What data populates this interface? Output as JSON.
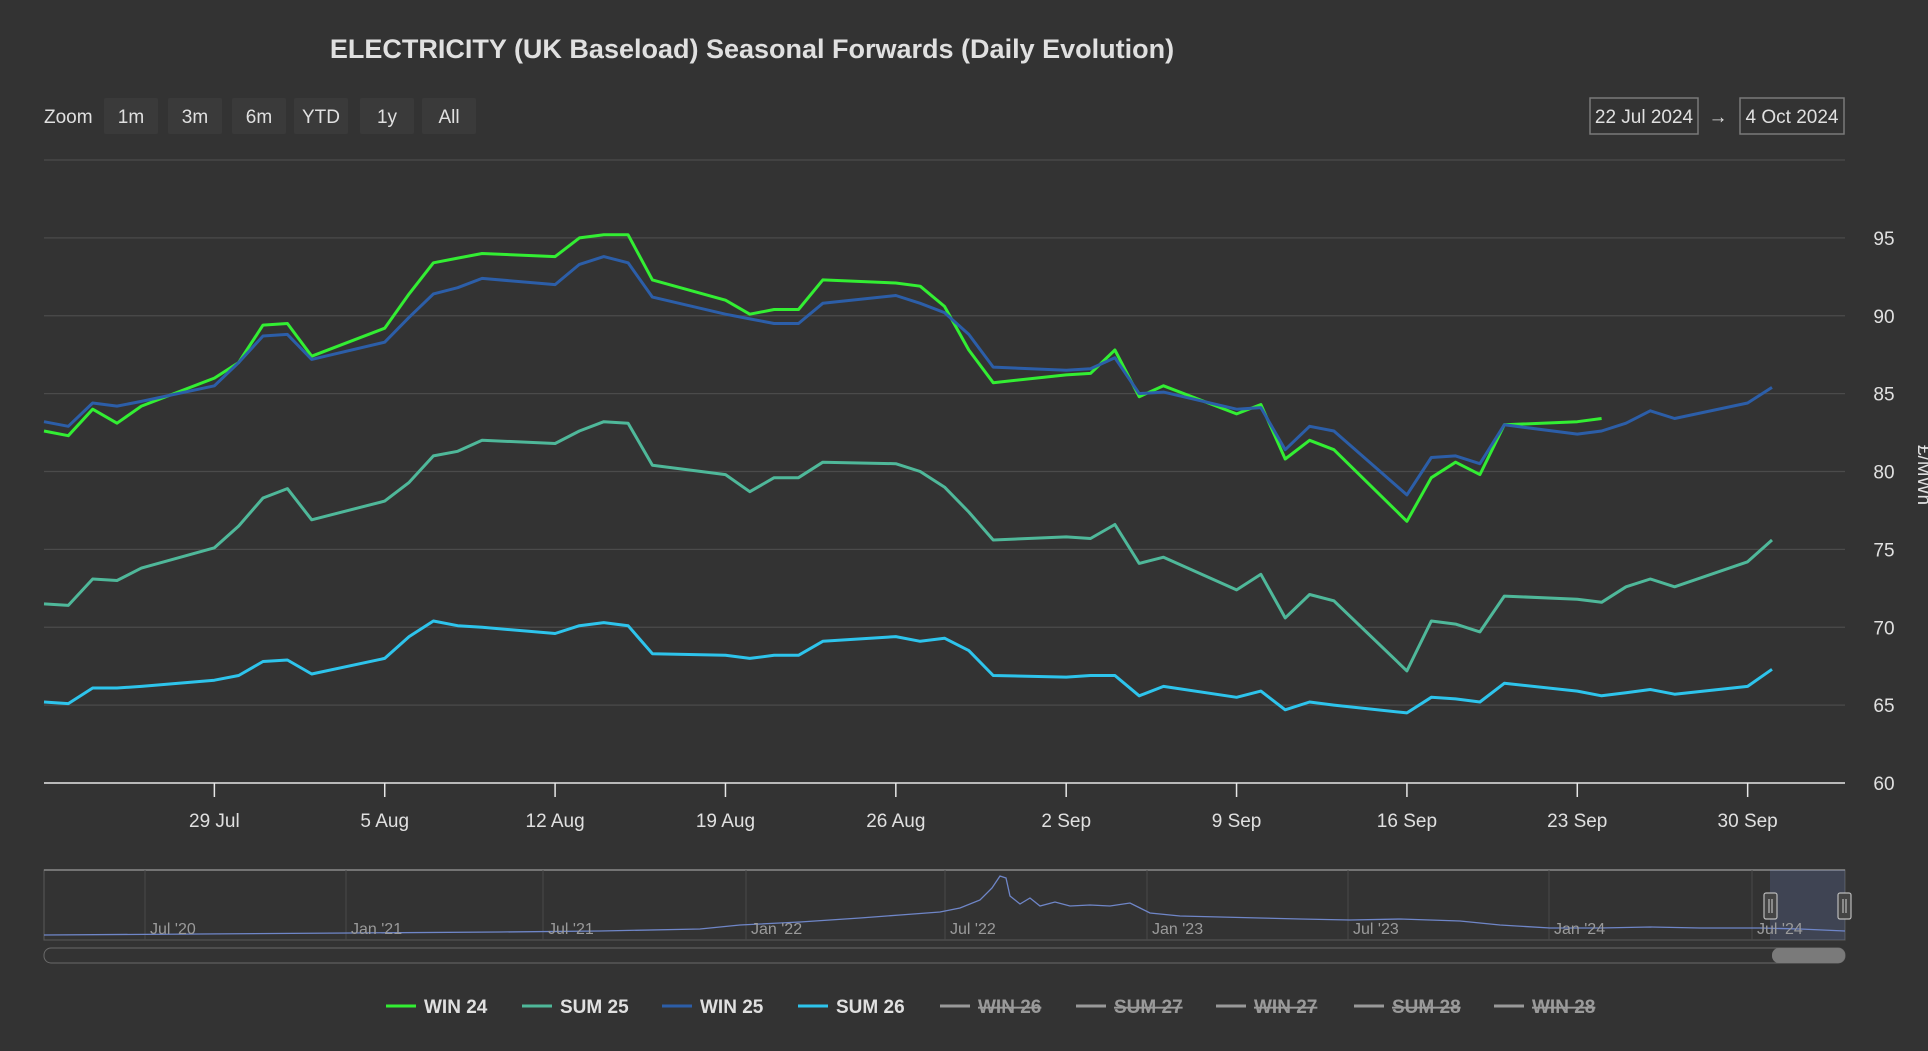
{
  "title": "ELECTRICITY (UK Baseload) Seasonal Forwards (Daily Evolution)",
  "range_selector": {
    "zoom_label": "Zoom",
    "buttons": [
      "1m",
      "3m",
      "6m",
      "YTD",
      "1y",
      "All"
    ],
    "from_date": "22 Jul 2024",
    "arrow": "→",
    "to_date": "4 Oct 2024"
  },
  "y_axis_label": "£/MWh",
  "navigator_labels": [
    "Jul '20",
    "Jan '21",
    "Jul '21",
    "Jan '22",
    "Jul '22",
    "Jan '23",
    "Jul '23",
    "Jan '24",
    "Jul '24"
  ],
  "colors": {
    "WIN 24": "#33ee33",
    "SUM 25": "#4fb89a",
    "WIN 25": "#2c5ea8",
    "SUM 26": "#2ec4ec",
    "hidden": "#9a9a9a",
    "navigator": "#6f86c8"
  },
  "chart_data": {
    "type": "line",
    "x": [
      "2024-07-22",
      "2024-07-23",
      "2024-07-24",
      "2024-07-25",
      "2024-07-26",
      "2024-07-29",
      "2024-07-30",
      "2024-07-31",
      "2024-08-01",
      "2024-08-02",
      "2024-08-05",
      "2024-08-06",
      "2024-08-07",
      "2024-08-08",
      "2024-08-09",
      "2024-08-12",
      "2024-08-13",
      "2024-08-14",
      "2024-08-15",
      "2024-08-16",
      "2024-08-19",
      "2024-08-20",
      "2024-08-21",
      "2024-08-22",
      "2024-08-23",
      "2024-08-26",
      "2024-08-27",
      "2024-08-28",
      "2024-08-29",
      "2024-08-30",
      "2024-09-02",
      "2024-09-03",
      "2024-09-04",
      "2024-09-05",
      "2024-09-06",
      "2024-09-09",
      "2024-09-10",
      "2024-09-11",
      "2024-09-12",
      "2024-09-13",
      "2024-09-16",
      "2024-09-17",
      "2024-09-18",
      "2024-09-19",
      "2024-09-20",
      "2024-09-23",
      "2024-09-24",
      "2024-09-25",
      "2024-09-26",
      "2024-09-27",
      "2024-09-30",
      "2024-10-01",
      "2024-10-02",
      "2024-10-03",
      "2024-10-04"
    ],
    "x_ticks": [
      {
        "date": "2024-07-29",
        "label": "29 Jul"
      },
      {
        "date": "2024-08-05",
        "label": "5 Aug"
      },
      {
        "date": "2024-08-12",
        "label": "12 Aug"
      },
      {
        "date": "2024-08-19",
        "label": "19 Aug"
      },
      {
        "date": "2024-08-26",
        "label": "26 Aug"
      },
      {
        "date": "2024-09-02",
        "label": "2 Sep"
      },
      {
        "date": "2024-09-09",
        "label": "9 Sep"
      },
      {
        "date": "2024-09-16",
        "label": "16 Sep"
      },
      {
        "date": "2024-09-23",
        "label": "23 Sep"
      },
      {
        "date": "2024-09-30",
        "label": "30 Sep"
      }
    ],
    "y_ticks": [
      60,
      65,
      70,
      75,
      80,
      85,
      90,
      95
    ],
    "ylim": [
      60,
      100
    ],
    "ylabel": "£/MWh",
    "grid": true,
    "legend_position": "bottom",
    "series": [
      {
        "name": "WIN 24",
        "values": [
          82.6,
          82.3,
          84.0,
          83.1,
          84.2,
          86.0,
          87.0,
          89.4,
          89.5,
          87.4,
          89.2,
          91.4,
          93.4,
          93.7,
          94.0,
          93.8,
          95.0,
          95.2,
          95.2,
          92.3,
          91.0,
          90.1,
          90.4,
          90.4,
          92.3,
          92.1,
          91.9,
          90.6,
          87.8,
          85.7,
          86.2,
          86.3,
          87.8,
          84.8,
          85.5,
          83.7,
          84.3,
          80.8,
          82.0,
          81.4,
          76.8,
          79.6,
          80.6,
          79.8,
          83.0,
          83.2,
          83.4,
          null,
          null,
          null,
          null,
          null,
          null,
          null,
          null
        ]
      },
      {
        "name": "SUM 25",
        "values": [
          71.5,
          71.4,
          73.1,
          73.0,
          73.8,
          75.1,
          76.5,
          78.3,
          78.9,
          76.9,
          78.1,
          79.3,
          81.0,
          81.3,
          82.0,
          81.8,
          82.6,
          83.2,
          83.1,
          80.4,
          79.8,
          78.7,
          79.6,
          79.6,
          80.6,
          80.5,
          80.0,
          79.0,
          77.4,
          75.6,
          75.8,
          75.7,
          76.6,
          74.1,
          74.5,
          72.4,
          73.4,
          70.6,
          72.1,
          71.7,
          67.2,
          70.4,
          70.2,
          69.7,
          72.0,
          71.8,
          71.6,
          72.6,
          73.1,
          72.6,
          74.2,
          75.6,
          null,
          null,
          null
        ]
      },
      {
        "name": "WIN 25",
        "values": [
          83.2,
          82.9,
          84.4,
          84.2,
          84.5,
          85.5,
          87.0,
          88.7,
          88.8,
          87.2,
          88.3,
          89.9,
          91.4,
          91.8,
          92.4,
          92.0,
          93.3,
          93.8,
          93.4,
          91.2,
          90.1,
          89.8,
          89.5,
          89.5,
          90.8,
          91.3,
          90.8,
          90.2,
          88.8,
          86.7,
          86.5,
          86.6,
          87.3,
          85.0,
          85.1,
          84.0,
          84.1,
          81.4,
          82.9,
          82.6,
          78.5,
          80.9,
          81.0,
          80.5,
          83.0,
          82.4,
          82.6,
          83.1,
          83.9,
          83.4,
          84.4,
          85.4,
          null,
          null,
          null
        ]
      },
      {
        "name": "SUM 26",
        "values": [
          65.2,
          65.1,
          66.1,
          66.1,
          66.2,
          66.6,
          66.9,
          67.8,
          67.9,
          67.0,
          68.0,
          69.4,
          70.4,
          70.1,
          70.0,
          69.6,
          70.1,
          70.3,
          70.1,
          68.3,
          68.2,
          68.0,
          68.2,
          68.2,
          69.1,
          69.4,
          69.1,
          69.3,
          68.5,
          66.9,
          66.8,
          66.9,
          66.9,
          65.6,
          66.2,
          65.5,
          65.9,
          64.7,
          65.2,
          65.0,
          64.5,
          65.5,
          65.4,
          65.2,
          66.4,
          65.9,
          65.6,
          65.8,
          66.0,
          65.7,
          66.2,
          67.3,
          null,
          null,
          null
        ]
      }
    ],
    "legend": [
      {
        "name": "WIN 24",
        "visible": true
      },
      {
        "name": "SUM 25",
        "visible": true
      },
      {
        "name": "WIN 25",
        "visible": true
      },
      {
        "name": "SUM 26",
        "visible": true
      },
      {
        "name": "WIN 26",
        "visible": false
      },
      {
        "name": "SUM 27",
        "visible": false
      },
      {
        "name": "WIN 27",
        "visible": false
      },
      {
        "name": "SUM 28",
        "visible": false
      },
      {
        "name": "WIN 28",
        "visible": false
      }
    ]
  }
}
